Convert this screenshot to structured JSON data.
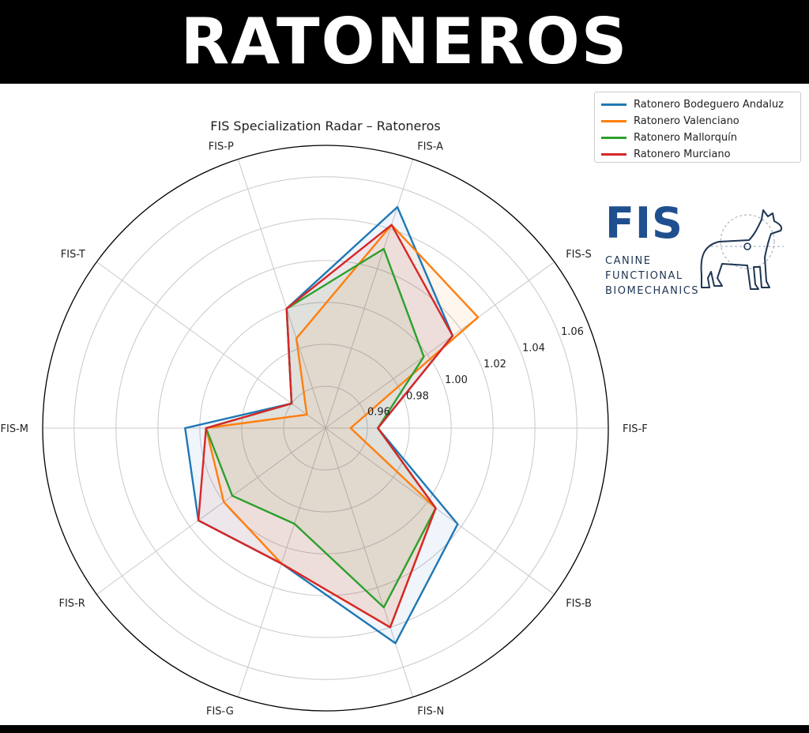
{
  "banner": {
    "title": "RATONEROS"
  },
  "logo": {
    "mark": "FIS",
    "lines": [
      "CANINE",
      "FUNCTIONAL",
      "BIOMECHANICS"
    ],
    "icon": "dog-silhouette-icon"
  },
  "chart_data": {
    "type": "radar",
    "title": "FIS Specialization Radar – Ratoneros",
    "axes": [
      "FIS-F",
      "FIS-S",
      "FIS-A",
      "FIS-P",
      "FIS-T",
      "FIS-M",
      "FIS-R",
      "FIS-G",
      "FIS-N",
      "FIS-B"
    ],
    "rmin": 0.94,
    "rmax": 1.075,
    "rticks": [
      0.96,
      0.98,
      1.0,
      1.02,
      1.04,
      1.06
    ],
    "rtick_labels": [
      "0.96",
      "0.98",
      "1.00",
      "1.02",
      "1.04",
      "1.06"
    ],
    "grid": true,
    "legend_position": "top-right",
    "series": [
      {
        "name": "Ratonero Bodeguero Andaluz",
        "color": "#1f77b4",
        "values": [
          0.965,
          1.015,
          1.051,
          1.0,
          0.96,
          1.007,
          1.015,
          1.008,
          1.048,
          1.018
        ]
      },
      {
        "name": "Ratonero Valenciano",
        "color": "#ff7f0e",
        "values": [
          0.952,
          1.03,
          1.042,
          0.985,
          0.951,
          0.997,
          1.0,
          1.008,
          1.04,
          1.005
        ]
      },
      {
        "name": "Ratonero Mallorquín",
        "color": "#2ca02c",
        "values": [
          0.965,
          0.998,
          1.03,
          1.0,
          0.96,
          0.997,
          0.995,
          0.988,
          1.03,
          1.005
        ]
      },
      {
        "name": "Ratonero Murciano",
        "color": "#d62728",
        "values": [
          0.965,
          1.015,
          1.042,
          1.0,
          0.96,
          0.997,
          1.015,
          1.008,
          1.04,
          1.005
        ]
      }
    ]
  }
}
